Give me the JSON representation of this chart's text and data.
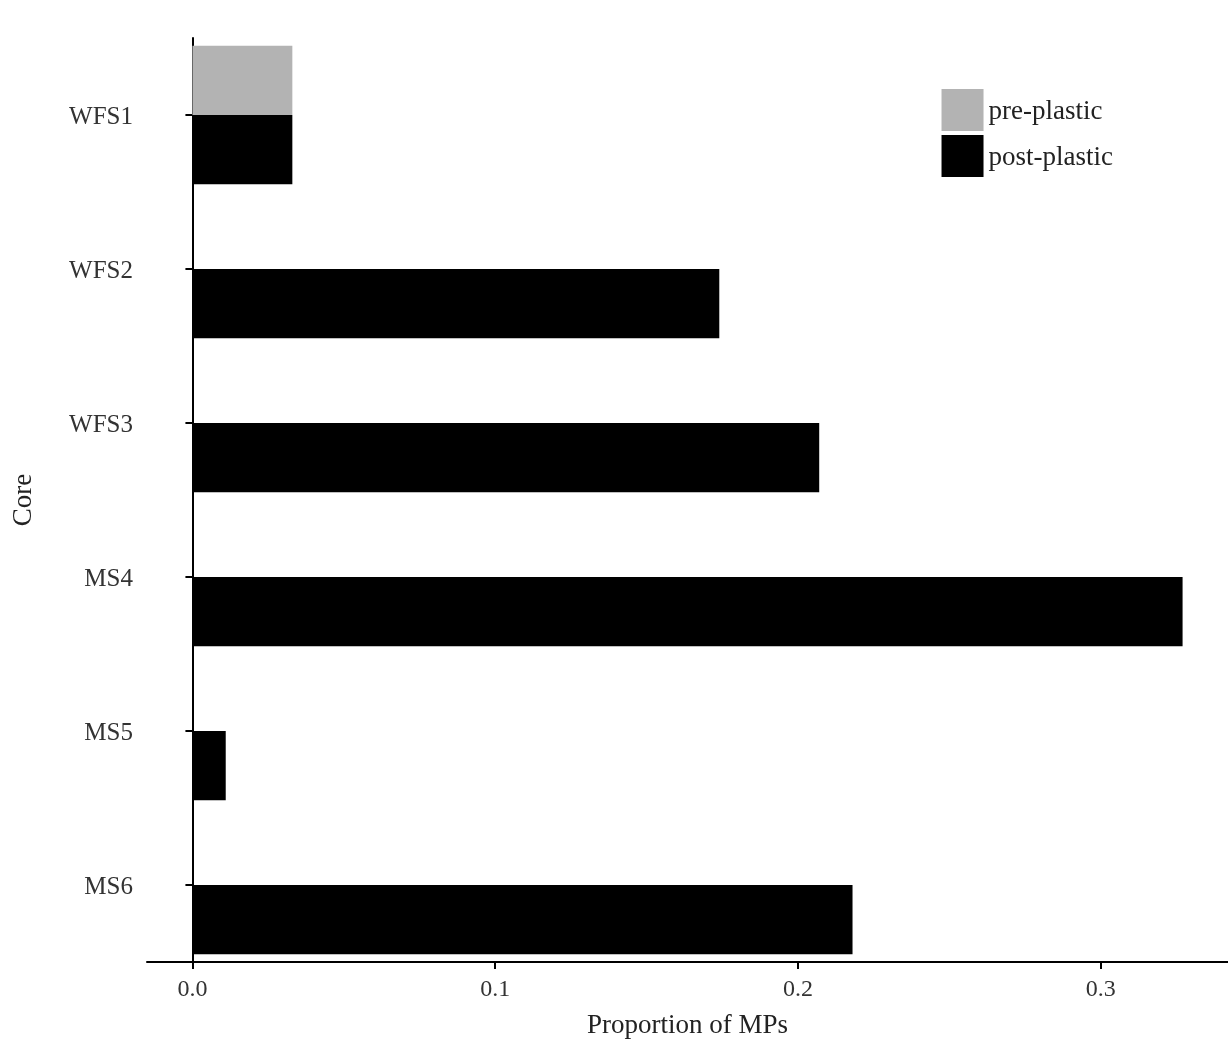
{
  "chart_data": {
    "type": "bar",
    "orientation": "horizontal",
    "xlabel": "Proportion of MPs",
    "ylabel": "Core",
    "categories": [
      "WFS1",
      "WFS2",
      "WFS3",
      "MS4",
      "MS5",
      "MS6"
    ],
    "series": [
      {
        "name": "pre-plastic",
        "color": "#b3b3b3",
        "values": [
          0.033,
          null,
          null,
          null,
          null,
          null
        ]
      },
      {
        "name": "post-plastic",
        "color": "#000000",
        "values": [
          0.033,
          0.174,
          0.207,
          0.327,
          0.011,
          0.218
        ]
      }
    ],
    "xlim": [
      -0.015,
      0.342
    ],
    "xticks": [
      {
        "value": 0,
        "label": "0.0"
      },
      0.1,
      0.2,
      0.3
    ],
    "grid": false,
    "legend": "top right"
  }
}
